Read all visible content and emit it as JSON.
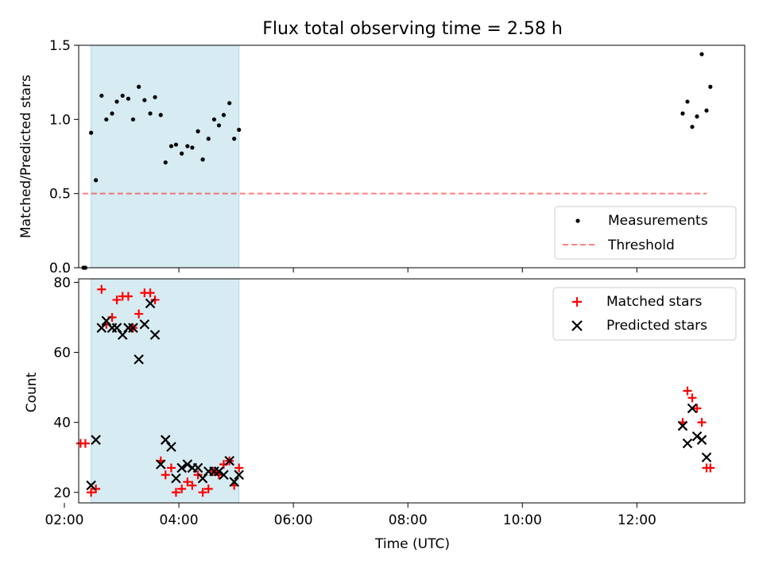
{
  "colors": {
    "band": "#add8e6",
    "measurement": "#000000",
    "threshold": "#ff0000",
    "matched": "#ff0000",
    "predicted": "#000000"
  },
  "chart_data": [
    {
      "type": "scatter",
      "title": "Flux total observing time = 2.58 h",
      "xlabel": "",
      "ylabel": "Matched/Predicted stars",
      "xlim": [
        "02:15",
        "13:53"
      ],
      "ylim": [
        0,
        1.5
      ],
      "yticks": [
        "0.0",
        "0.5",
        "1.0",
        "1.5"
      ],
      "shaded_band": {
        "from": "02:28",
        "to": "05:03"
      },
      "legend": {
        "position": "lower-right",
        "entries": [
          "Measurements",
          "Threshold"
        ]
      },
      "threshold": {
        "name": "Threshold",
        "value": 0.5,
        "x_from": "02:19",
        "x_to": "13:13"
      },
      "series": [
        {
          "name": "Measurements",
          "x": [
            "02:20",
            "02:22",
            "02:28",
            "02:33",
            "02:39",
            "02:44",
            "02:50",
            "02:55",
            "03:01",
            "03:07",
            "03:12",
            "03:18",
            "03:24",
            "03:30",
            "03:35",
            "03:41",
            "03:46",
            "03:52",
            "03:57",
            "04:03",
            "04:09",
            "04:14",
            "04:20",
            "04:25",
            "04:31",
            "04:37",
            "04:42",
            "04:47",
            "04:53",
            "04:58",
            "05:03",
            "12:48",
            "12:53",
            "12:58",
            "13:03",
            "13:08",
            "13:13",
            "13:17"
          ],
          "y": [
            0.0,
            0.0,
            0.91,
            0.59,
            1.16,
            1.0,
            1.04,
            1.12,
            1.16,
            1.14,
            1.0,
            1.22,
            1.13,
            1.04,
            1.15,
            1.03,
            0.71,
            0.82,
            0.83,
            0.77,
            0.82,
            0.81,
            0.92,
            0.73,
            0.87,
            1.0,
            0.96,
            1.03,
            1.11,
            0.87,
            0.93,
            1.04,
            1.12,
            0.95,
            1.02,
            1.44,
            1.06,
            1.22
          ]
        }
      ]
    },
    {
      "type": "scatter",
      "xlabel": "Time (UTC)",
      "ylabel": "Count",
      "xlim": [
        "02:15",
        "13:53"
      ],
      "ylim": [
        17,
        81
      ],
      "xticks": [
        "02:00",
        "04:00",
        "06:00",
        "08:00",
        "10:00",
        "12:00"
      ],
      "yticks": [
        "20",
        "40",
        "60",
        "80"
      ],
      "shaded_band": {
        "from": "02:28",
        "to": "05:03"
      },
      "legend": {
        "position": "upper-right",
        "entries": [
          "Matched stars",
          "Predicted stars"
        ]
      },
      "series": [
        {
          "name": "Matched stars",
          "x": [
            "02:17",
            "02:22",
            "02:28",
            "02:33",
            "02:39",
            "02:44",
            "02:50",
            "02:55",
            "03:01",
            "03:07",
            "03:12",
            "03:18",
            "03:24",
            "03:30",
            "03:35",
            "03:41",
            "03:46",
            "03:52",
            "03:57",
            "04:03",
            "04:09",
            "04:14",
            "04:20",
            "04:25",
            "04:31",
            "04:37",
            "04:42",
            "04:47",
            "04:53",
            "04:58",
            "05:03",
            "12:48",
            "12:53",
            "12:58",
            "13:03",
            "13:08",
            "13:13",
            "13:17"
          ],
          "y": [
            34,
            34,
            20,
            21,
            78,
            68,
            70,
            75,
            76,
            76,
            67,
            71,
            77,
            77,
            75,
            29,
            25,
            27,
            20,
            21,
            23,
            22,
            25,
            20,
            21,
            26,
            25,
            28,
            29,
            22,
            27,
            40,
            49,
            47,
            44,
            40,
            27,
            27
          ]
        },
        {
          "name": "Predicted stars",
          "x": [
            "02:28",
            "02:33",
            "02:39",
            "02:44",
            "02:50",
            "02:55",
            "03:01",
            "03:07",
            "03:12",
            "03:18",
            "03:24",
            "03:30",
            "03:35",
            "03:41",
            "03:46",
            "03:52",
            "03:57",
            "04:03",
            "04:09",
            "04:14",
            "04:20",
            "04:25",
            "04:31",
            "04:37",
            "04:42",
            "04:47",
            "04:53",
            "04:58",
            "05:03",
            "12:48",
            "12:53",
            "12:58",
            "13:03",
            "13:08",
            "13:13"
          ],
          "y": [
            22,
            35,
            67,
            69,
            67,
            67,
            65,
            67,
            67,
            58,
            68,
            74,
            65,
            28,
            35,
            33,
            24,
            27,
            28,
            27,
            27,
            24,
            26,
            26,
            26,
            25,
            29,
            23,
            25,
            39,
            34,
            44,
            36,
            35,
            30
          ]
        }
      ]
    }
  ]
}
